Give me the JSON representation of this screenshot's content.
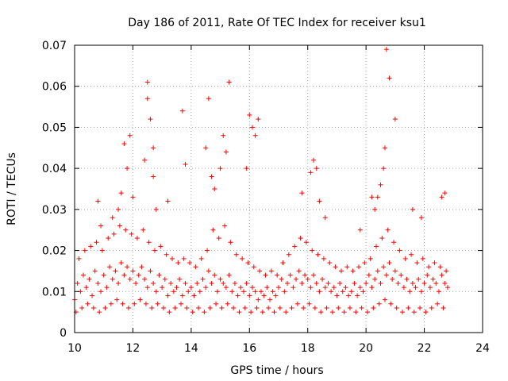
{
  "chart_data": {
    "type": "scatter",
    "title": "Day 186 of 2011, Rate Of TEC Index for receiver ksu1",
    "xlabel": "GPS time / hours",
    "ylabel": "ROTI / TECUs",
    "xlim": [
      10,
      24
    ],
    "ylim": [
      0,
      0.07
    ],
    "x_ticks": [
      "10",
      "12",
      "14",
      "16",
      "18",
      "20",
      "22",
      "24"
    ],
    "y_ticks": [
      "0",
      "0.01",
      "0.02",
      "0.03",
      "0.04",
      "0.05",
      "0.06",
      "0.07"
    ],
    "grid": true,
    "legend": "none",
    "marker": "plus",
    "series_color": "#ff0000",
    "series": [
      {
        "x": [
          10.0,
          10.1,
          10.2,
          10.3,
          10.4,
          10.5,
          10.6,
          10.7,
          10.8,
          10.9,
          11.0,
          11.1,
          11.2,
          11.3,
          11.4,
          11.5,
          11.6,
          11.7,
          11.8,
          11.9,
          12.0,
          12.1,
          12.2,
          12.3,
          12.4,
          12.5,
          12.6,
          12.7,
          12.8,
          12.9,
          13.0,
          13.1,
          13.2,
          13.3,
          13.4,
          13.5,
          13.6,
          13.7,
          13.8,
          13.9,
          14.0,
          14.1,
          14.2,
          14.3,
          14.4,
          14.5,
          14.6,
          14.7,
          14.8,
          14.9,
          15.0,
          15.1,
          15.2,
          15.3,
          15.4,
          15.5,
          15.6,
          15.7,
          15.8,
          15.9,
          16.0,
          16.1,
          16.2,
          16.3,
          16.4,
          16.5,
          16.6,
          16.7,
          16.8,
          16.9,
          17.0,
          17.1,
          17.2,
          17.3,
          17.4,
          17.5,
          17.6,
          17.7,
          17.8,
          17.9,
          18.0,
          18.1,
          18.2,
          18.3,
          18.4,
          18.5,
          18.6,
          18.7,
          18.8,
          18.9,
          19.0,
          19.1,
          19.2,
          19.3,
          19.4,
          19.5,
          19.6,
          19.7,
          19.8,
          19.9,
          20.0,
          20.1,
          20.2,
          20.3,
          20.4,
          20.5,
          20.6,
          20.7,
          20.8,
          20.9,
          21.0,
          21.1,
          21.2,
          21.3,
          21.4,
          21.5,
          21.6,
          21.7,
          21.8,
          21.9,
          22.0,
          22.1,
          22.2,
          22.3,
          22.4,
          22.5,
          22.6,
          22.7,
          22.8,
          10.05,
          10.15,
          10.25,
          10.35,
          10.45,
          10.55,
          10.65,
          10.75,
          10.85,
          10.95,
          11.05,
          11.15,
          11.25,
          11.35,
          11.45,
          11.55,
          11.65,
          11.75,
          11.85,
          11.95,
          12.05,
          12.15,
          12.25,
          12.35,
          12.45,
          12.55,
          12.65,
          12.75,
          12.85,
          12.95,
          13.05,
          13.15,
          13.25,
          13.35,
          13.45,
          13.55,
          13.65,
          13.75,
          13.85,
          13.95,
          14.05,
          14.15,
          14.25,
          14.35,
          14.45,
          14.55,
          14.65,
          14.75,
          14.85,
          14.95,
          15.05,
          15.15,
          15.25,
          15.35,
          15.45,
          15.55,
          15.65,
          15.75,
          15.85,
          15.95,
          16.05,
          16.15,
          16.25,
          16.35,
          16.45,
          16.55,
          16.65,
          16.75,
          16.85,
          16.95,
          17.05,
          17.15,
          17.25,
          17.35,
          17.45,
          17.55,
          17.65,
          17.75,
          17.85,
          17.95,
          18.05,
          18.15,
          18.25,
          18.35,
          18.45,
          18.55,
          18.65,
          18.75,
          18.85,
          18.95,
          19.05,
          19.15,
          19.25,
          19.35,
          19.45,
          19.55,
          19.65,
          19.75,
          19.85,
          19.95,
          20.05,
          20.15,
          20.25,
          20.35,
          20.45,
          20.55,
          20.65,
          20.75,
          20.85,
          20.95,
          21.05,
          21.15,
          21.25,
          21.35,
          21.45,
          21.55,
          21.65,
          21.75,
          21.85,
          21.95,
          22.05,
          22.15,
          22.25,
          22.35,
          22.45,
          22.55,
          22.65,
          22.75,
          10.8,
          10.9,
          11.3,
          11.5,
          11.6,
          11.7,
          11.8,
          11.9,
          12.0,
          12.4,
          12.5,
          12.5,
          12.6,
          12.7,
          12.7,
          12.8,
          13.2,
          13.7,
          13.8,
          14.5,
          14.6,
          14.7,
          14.8,
          15.0,
          15.1,
          15.2,
          15.3,
          15.9,
          16.0,
          16.1,
          16.2,
          16.3,
          17.8,
          18.1,
          18.2,
          18.3,
          18.4,
          18.6,
          19.8,
          20.2,
          20.3,
          20.4,
          20.5,
          20.6,
          20.65,
          20.7,
          20.8,
          21.0,
          21.6,
          21.9,
          22.6,
          22.7
        ],
        "y": [
          0.008,
          0.012,
          0.01,
          0.014,
          0.011,
          0.013,
          0.009,
          0.015,
          0.012,
          0.01,
          0.014,
          0.011,
          0.016,
          0.013,
          0.015,
          0.012,
          0.017,
          0.014,
          0.016,
          0.013,
          0.015,
          0.012,
          0.014,
          0.016,
          0.013,
          0.011,
          0.015,
          0.012,
          0.01,
          0.014,
          0.011,
          0.013,
          0.009,
          0.012,
          0.01,
          0.011,
          0.013,
          0.009,
          0.012,
          0.01,
          0.011,
          0.009,
          0.012,
          0.01,
          0.013,
          0.011,
          0.015,
          0.012,
          0.014,
          0.01,
          0.013,
          0.012,
          0.011,
          0.014,
          0.01,
          0.012,
          0.009,
          0.011,
          0.01,
          0.012,
          0.009,
          0.011,
          0.01,
          0.008,
          0.01,
          0.009,
          0.011,
          0.008,
          0.01,
          0.009,
          0.011,
          0.013,
          0.01,
          0.012,
          0.014,
          0.011,
          0.013,
          0.015,
          0.012,
          0.014,
          0.013,
          0.011,
          0.014,
          0.012,
          0.01,
          0.013,
          0.011,
          0.012,
          0.01,
          0.011,
          0.009,
          0.012,
          0.01,
          0.011,
          0.009,
          0.01,
          0.012,
          0.009,
          0.011,
          0.01,
          0.012,
          0.014,
          0.011,
          0.013,
          0.015,
          0.012,
          0.016,
          0.014,
          0.017,
          0.013,
          0.015,
          0.012,
          0.014,
          0.011,
          0.013,
          0.01,
          0.012,
          0.011,
          0.013,
          0.01,
          0.012,
          0.014,
          0.011,
          0.013,
          0.012,
          0.01,
          0.014,
          0.012,
          0.011,
          0.005,
          0.018,
          0.006,
          0.02,
          0.007,
          0.021,
          0.006,
          0.022,
          0.005,
          0.02,
          0.006,
          0.023,
          0.007,
          0.024,
          0.008,
          0.026,
          0.007,
          0.025,
          0.006,
          0.024,
          0.007,
          0.023,
          0.008,
          0.025,
          0.007,
          0.022,
          0.006,
          0.02,
          0.007,
          0.021,
          0.006,
          0.019,
          0.005,
          0.018,
          0.006,
          0.017,
          0.007,
          0.018,
          0.006,
          0.017,
          0.005,
          0.016,
          0.006,
          0.018,
          0.005,
          0.02,
          0.006,
          0.025,
          0.007,
          0.023,
          0.006,
          0.026,
          0.007,
          0.022,
          0.006,
          0.019,
          0.005,
          0.018,
          0.006,
          0.017,
          0.005,
          0.016,
          0.006,
          0.015,
          0.005,
          0.014,
          0.006,
          0.015,
          0.005,
          0.014,
          0.006,
          0.017,
          0.005,
          0.019,
          0.006,
          0.021,
          0.007,
          0.023,
          0.006,
          0.022,
          0.007,
          0.02,
          0.006,
          0.019,
          0.005,
          0.018,
          0.006,
          0.017,
          0.005,
          0.016,
          0.006,
          0.015,
          0.005,
          0.016,
          0.006,
          0.015,
          0.005,
          0.016,
          0.006,
          0.017,
          0.005,
          0.018,
          0.006,
          0.021,
          0.007,
          0.023,
          0.008,
          0.025,
          0.007,
          0.022,
          0.006,
          0.02,
          0.005,
          0.018,
          0.006,
          0.019,
          0.005,
          0.017,
          0.006,
          0.018,
          0.005,
          0.016,
          0.006,
          0.017,
          0.007,
          0.016,
          0.006,
          0.015,
          0.032,
          0.026,
          0.028,
          0.03,
          0.034,
          0.046,
          0.04,
          0.048,
          0.033,
          0.042,
          0.061,
          0.057,
          0.052,
          0.045,
          0.038,
          0.03,
          0.032,
          0.054,
          0.041,
          0.045,
          0.057,
          0.038,
          0.035,
          0.04,
          0.048,
          0.044,
          0.061,
          0.04,
          0.053,
          0.05,
          0.048,
          0.052,
          0.034,
          0.039,
          0.042,
          0.04,
          0.032,
          0.028,
          0.025,
          0.033,
          0.03,
          0.033,
          0.036,
          0.04,
          0.045,
          0.069,
          0.062,
          0.052,
          0.03,
          0.028,
          0.033,
          0.034
        ]
      }
    ]
  }
}
